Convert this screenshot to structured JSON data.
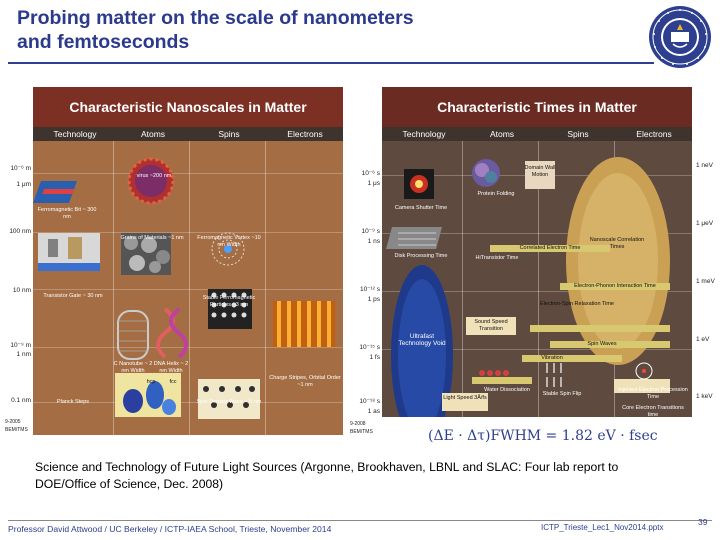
{
  "slide": {
    "title_line1": "Probing matter on the scale of nanometers",
    "title_line2": "and femtoseconds",
    "formula": "(ΔE · Δτ)FWHM = 1.82 eV · fsec",
    "caption": "Science and Technology of Future Light Sources (Argonne, Brookhaven, LBNL and SLAC: Four lab report to DOE/Office of Science, Dec. 2008)",
    "footer_left": "Professor David Attwood / UC Berkeley / ICTP-IAEA School, Trieste, November 2014",
    "footer_right": "ICTP_Trieste_Lec1_Nov2014.pptx",
    "page_number": "39"
  },
  "left_panel": {
    "title": "Characteristic Nanoscales in Matter",
    "columns": [
      "Technology",
      "Atoms",
      "Spins",
      "Electrons"
    ],
    "axis": [
      "10⁻⁶ m",
      "1 μm",
      "100 nm",
      "10 nm",
      "10⁻⁹ m",
      "1 nm",
      "0.1 nm"
    ],
    "labels": [
      "virus ~200 nm",
      "Ferromagnetic Bit ~ 300 nm",
      "Grains of Materials ~1 nm",
      "Ferromagnetic Vortex ~10 nm Width",
      "Transistor Gate ~ 30 nm",
      "Stable Ferromagnetic Particles ~3 nm",
      "C Nanotube ~ 2 nm Width",
      "DNA Helix ~ 2 nm Width",
      "Charge Stripes, Orbital Order ~1 nm",
      "Planck Steps",
      "Spin Density Wave ~ 5 nm",
      "hcp",
      "fcc"
    ],
    "credit": "9-2005 BEM/TMS"
  },
  "right_panel": {
    "title": "Characteristic Times in Matter",
    "columns": [
      "Technology",
      "Atoms",
      "Spins",
      "Electrons"
    ],
    "axis": [
      "10⁻⁶ s",
      "1 μs",
      "10⁻⁹ s",
      "1 ns",
      "10⁻¹² s",
      "1 ps",
      "10⁻¹⁵ s",
      "1 fs",
      "10⁻¹⁸ s",
      "1 as"
    ],
    "energy_axis": [
      "1 neV",
      "1 μeV",
      "1 meV",
      "1 eV",
      "1 keV"
    ],
    "labels": [
      "Camera Shutter Time",
      "Protein Folding",
      "Domain Wall Motion",
      "Disk Processing Time",
      "HiTransistor Time",
      "Nanoscale Correlation Times",
      "Sound Speed Transition",
      "Spin Waves",
      "Vibration",
      "Ultrafast Technology Void",
      "Water Dissociation",
      "Stable Spin Flip",
      "Injected Electron Precession Time",
      "Core Electron Transitions time",
      "Light Speed 3Å/fs",
      "Correlated Electron Time",
      "Electron-Phonon Interaction Time",
      "Electron-Spin Relaxation Time"
    ],
    "credit": "9-2008 BEM/TMS"
  },
  "colors": {
    "title_blue": "#2b3a8c",
    "left_panel_bg": "#a46d43",
    "right_panel_bg": "#5e4a3f",
    "header_red": "#7c2f23"
  },
  "icons": [
    "uc-berkeley-seal-icon"
  ]
}
